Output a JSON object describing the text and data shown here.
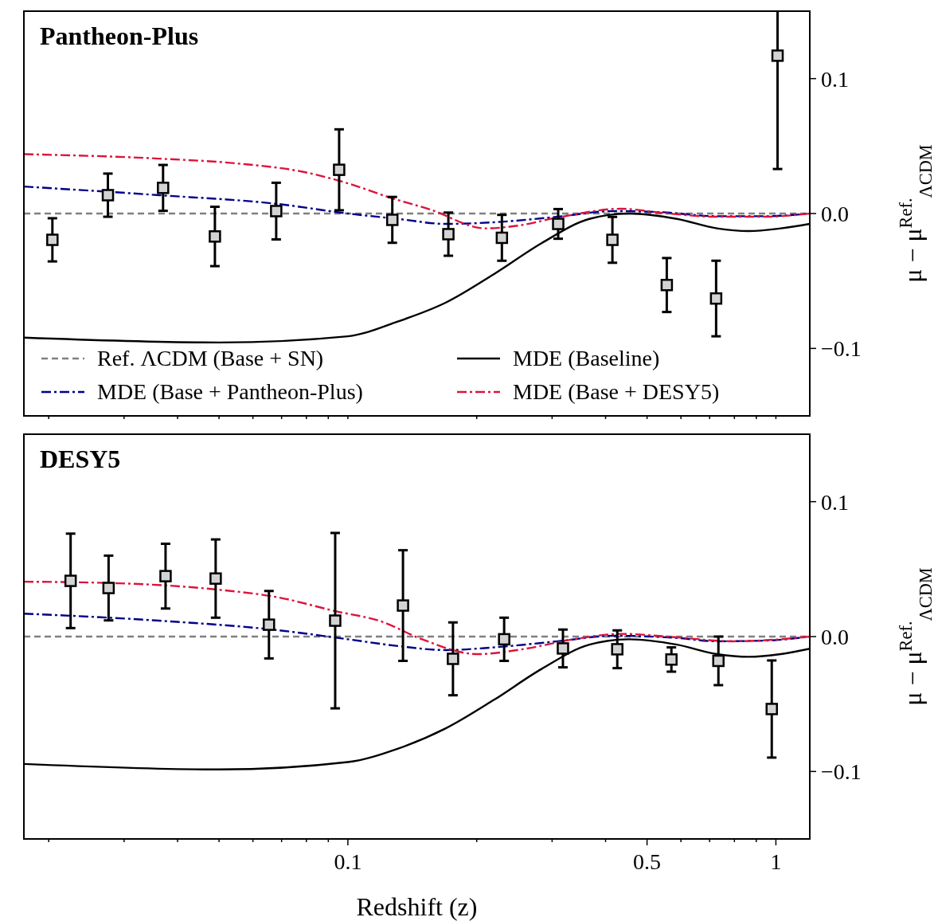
{
  "chart_data": [
    {
      "type": "line",
      "title": "Pantheon-Plus",
      "ylabel": "μ − μ$^{Ref.}$$_{ΛCDM}$",
      "log": "x",
      "xlim": [
        0.0175,
        1.2
      ],
      "ylim": [
        -0.15,
        0.15
      ],
      "xticks": [
        {
          "value": 0.02,
          "label": null
        },
        {
          "value": 0.03,
          "label": null
        },
        {
          "value": 0.04,
          "label": null
        },
        {
          "value": 0.05,
          "label": null
        },
        {
          "value": 0.06,
          "label": null
        },
        {
          "value": 0.07,
          "label": null
        },
        {
          "value": 0.08,
          "label": null
        },
        {
          "value": 0.09,
          "label": null
        },
        {
          "value": 0.1,
          "label": null
        },
        {
          "value": 0.2,
          "label": null
        },
        {
          "value": 0.3,
          "label": null
        },
        {
          "value": 0.4,
          "label": null
        },
        {
          "value": 0.5,
          "label": null
        },
        {
          "value": 0.6,
          "label": null
        },
        {
          "value": 0.7,
          "label": null
        },
        {
          "value": 0.8,
          "label": null
        },
        {
          "value": 0.9,
          "label": null
        },
        {
          "value": 1,
          "label": null
        }
      ],
      "yticks": [
        {
          "value": -0.1,
          "label": "−0.1"
        },
        {
          "value": 0,
          "label": "0.0"
        },
        {
          "value": 0.1,
          "label": "0.1"
        }
      ],
      "tick_labels": "y",
      "legend": "bottom",
      "grid": false,
      "series": [
        {
          "name": "Ref. ΛCDM (Base + SN)",
          "color": "#808080",
          "line_style": "dashed",
          "x": [
            0.0175,
            1.2
          ],
          "values": [
            0,
            0
          ]
        },
        {
          "name": "MDE (Base + Pantheon-Plus)",
          "color": "#00008b",
          "line_style": "dashdot",
          "x": [
            0.0175,
            0.0362,
            0.0689,
            0.1,
            0.131,
            0.1694,
            0.2192,
            0.309,
            0.417,
            0.539,
            0.728,
            0.942,
            1.2
          ],
          "values": [
            0.02,
            0.0136,
            0.007,
            0,
            -0.004,
            -0.0077,
            -0.0065,
            -0.0024,
            0.0018,
            0.001,
            -0.002,
            -0.002,
            0
          ]
        },
        {
          "name": "MDE (Baseline)",
          "color": "#000000",
          "line_style": "solid",
          "x": [
            0.0175,
            0.05,
            0.1,
            0.131,
            0.1694,
            0.2192,
            0.2835,
            0.3666,
            0.4544,
            0.5875,
            0.728,
            0.8645,
            1.026,
            1.2
          ],
          "values": [
            -0.092,
            -0.0956,
            -0.091,
            -0.08,
            -0.066,
            -0.045,
            -0.022,
            -0.004,
            0,
            -0.004,
            -0.011,
            -0.013,
            -0.011,
            -0.0077
          ]
        },
        {
          "name": "MDE (Base + DESY5)",
          "color": "#dc143c",
          "line_style": "dashdot",
          "x": [
            0.0175,
            0.0362,
            0.0556,
            0.0783,
            0.1,
            0.1255,
            0.1555,
            0.21,
            0.2493,
            0.309,
            0.435,
            0.539,
            0.728,
            0.942,
            1.2
          ],
          "values": [
            0.044,
            0.0407,
            0.037,
            0.031,
            0.0224,
            0.0118,
            0.003,
            -0.011,
            -0.009,
            -0.003,
            0.0035,
            0.0006,
            -0.0024,
            -0.0024,
            0
          ]
        },
        {
          "type": "scatter",
          "marker": "square",
          "color": "#d3d3d3",
          "x": [
            0.0204,
            0.0275,
            0.037,
            0.0489,
            0.068,
            0.0954,
            0.127,
            0.1717,
            0.229,
            0.31,
            0.415,
            0.556,
            0.725,
            1.009
          ],
          "values": [
            -0.0195,
            0.0136,
            0.019,
            -0.017,
            0.0018,
            0.0324,
            -0.0047,
            -0.0153,
            -0.018,
            -0.0077,
            -0.0195,
            -0.053,
            -0.063,
            0.117
          ],
          "errors": [
            0.016,
            0.016,
            0.017,
            0.022,
            0.021,
            0.03,
            0.017,
            0.016,
            0.017,
            0.011,
            0.017,
            0.02,
            0.028,
            [
              0.033,
              0.15
            ]
          ]
        }
      ]
    },
    {
      "type": "line",
      "title": "DESY5",
      "xlabel": "Redshift (z)",
      "ylabel": "μ − μ$^{Ref.}$$_{ΛCDM}$",
      "log": "x",
      "xlim": [
        0.0175,
        1.2
      ],
      "ylim": [
        -0.15,
        0.15
      ],
      "xticks": [
        {
          "value": 0.02,
          "label": null
        },
        {
          "value": 0.03,
          "label": null
        },
        {
          "value": 0.04,
          "label": null
        },
        {
          "value": 0.05,
          "label": null
        },
        {
          "value": 0.06,
          "label": null
        },
        {
          "value": 0.07,
          "label": null
        },
        {
          "value": 0.08,
          "label": null
        },
        {
          "value": 0.09,
          "label": null
        },
        {
          "value": 0.1,
          "label": "0.1"
        },
        {
          "value": 0.2,
          "label": null
        },
        {
          "value": 0.3,
          "label": null
        },
        {
          "value": 0.4,
          "label": null
        },
        {
          "value": 0.5,
          "label": "0.5"
        },
        {
          "value": 0.6,
          "label": null
        },
        {
          "value": 0.7,
          "label": null
        },
        {
          "value": 0.8,
          "label": null
        },
        {
          "value": 0.9,
          "label": null
        },
        {
          "value": 1,
          "label": "1"
        }
      ],
      "yticks": [
        {
          "value": -0.1,
          "label": "−0.1"
        },
        {
          "value": 0,
          "label": "0.0"
        },
        {
          "value": 0.1,
          "label": "0.1"
        }
      ],
      "legend": false,
      "grid": false,
      "series": [
        {
          "color": "#808080",
          "line_style": "dashed",
          "x": [
            0.0175,
            1.2
          ],
          "values": [
            0,
            0
          ]
        },
        {
          "color": "#00008b",
          "line_style": "dashdot",
          "x": [
            0.0175,
            0.0362,
            0.0689,
            0.1,
            0.131,
            0.1694,
            0.2192,
            0.309,
            0.417,
            0.5875,
            0.728,
            0.942,
            1.2
          ],
          "values": [
            0.017,
            0.0118,
            0.0047,
            -0.002,
            -0.007,
            -0.01,
            -0.008,
            -0.0035,
            0.0006,
            -0.001,
            -0.0035,
            -0.003,
            0
          ]
        },
        {
          "color": "#000000",
          "line_style": "solid",
          "x": [
            0.0175,
            0.05,
            0.1,
            0.131,
            0.1694,
            0.2192,
            0.2835,
            0.3666,
            0.4544,
            0.5875,
            0.728,
            0.8645,
            1.026,
            1.2
          ],
          "values": [
            -0.0944,
            -0.0985,
            -0.093,
            -0.083,
            -0.068,
            -0.047,
            -0.024,
            -0.006,
            -0.002,
            -0.006,
            -0.013,
            -0.015,
            -0.013,
            -0.009
          ]
        },
        {
          "color": "#dc143c",
          "line_style": "dashdot",
          "x": [
            0.0175,
            0.0292,
            0.0489,
            0.0689,
            0.093,
            0.1202,
            0.149,
            0.2012,
            0.26,
            0.3365,
            0.435,
            0.5875,
            0.793,
            0.983,
            1.2
          ],
          "values": [
            0.0407,
            0.0395,
            0.035,
            0.029,
            0.019,
            0.011,
            -0.002,
            -0.013,
            -0.009,
            -0.002,
            0.002,
            -0.0006,
            -0.0035,
            -0.0024,
            0
          ]
        },
        {
          "type": "scatter",
          "marker": "square",
          "color": "#d3d3d3",
          "x": [
            0.0225,
            0.0276,
            0.0375,
            0.0491,
            0.0654,
            0.0934,
            0.1345,
            0.176,
            0.2318,
            0.318,
            0.426,
            0.57,
            0.734,
            0.978
          ],
          "values": [
            0.0413,
            0.036,
            0.0448,
            0.043,
            0.0088,
            0.0118,
            0.023,
            -0.0165,
            -0.002,
            -0.0088,
            -0.0094,
            -0.017,
            -0.018,
            -0.0537
          ],
          "errors": [
            0.035,
            0.024,
            0.024,
            0.029,
            0.025,
            0.065,
            0.041,
            0.027,
            0.016,
            0.014,
            0.014,
            0.009,
            0.018,
            0.036
          ]
        }
      ]
    }
  ]
}
